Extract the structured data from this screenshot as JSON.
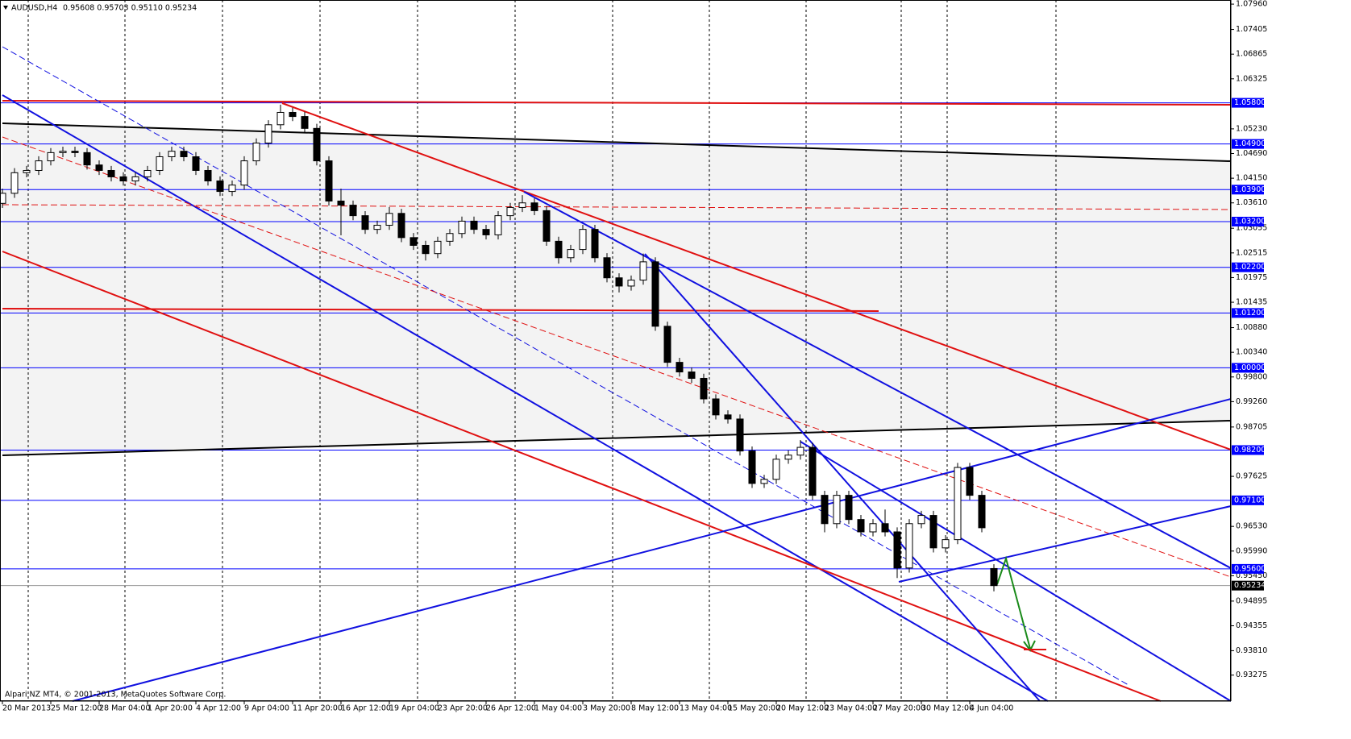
{
  "chart_data": {
    "type": "candlestick",
    "header": {
      "symbol": "AUDUSD,H4",
      "ohlc_text": "0.95608 0.95703 0.95110 0.95234"
    },
    "footer": "Alpari NZ MT4, © 2001-2013, MetaQuotes Software Corp.",
    "color_up": "#ffffff",
    "color_down": "#000000",
    "open": [
      1.036,
      1.0382,
      1.0427,
      1.0432,
      1.0453,
      1.0471,
      1.0474,
      1.0471,
      1.0444,
      1.0432,
      1.0418,
      1.0409,
      1.0418,
      1.0432,
      1.0462,
      1.0474,
      1.0462,
      1.0432,
      1.0409,
      1.0386,
      1.04,
      1.0453,
      1.0492,
      1.0532,
      1.0559,
      1.055,
      1.0524,
      1.0453,
      1.0365,
      1.0356,
      1.0333,
      1.0303,
      1.0312,
      1.0338,
      1.0285,
      1.0268,
      1.025,
      1.0277,
      1.0294,
      1.0321,
      1.0303,
      1.0291,
      1.0333,
      1.0351,
      1.0361,
      1.0344,
      1.0277,
      1.0241,
      1.0259,
      1.0303,
      1.0241,
      1.0197,
      1.0179,
      1.0192,
      1.0232,
      1.0091,
      1.0012,
      0.9991,
      0.9977,
      0.9932,
      0.9897,
      0.9888,
      0.9818,
      0.9747,
      0.9756,
      0.98,
      0.9809,
      0.9826,
      0.9721,
      0.9659,
      0.9721,
      0.9668,
      0.9641,
      0.9659,
      0.9641,
      0.9562,
      0.9659,
      0.9677,
      0.9606,
      0.9624,
      0.9782,
      0.9721,
      0.95608
    ],
    "high": [
      1.0392,
      1.0437,
      1.0442,
      1.0463,
      1.0481,
      1.0484,
      1.0484,
      1.0481,
      1.0454,
      1.0442,
      1.0428,
      1.0428,
      1.0442,
      1.0472,
      1.0484,
      1.0484,
      1.0472,
      1.0442,
      1.0419,
      1.041,
      1.0463,
      1.0502,
      1.0542,
      1.0576,
      1.0569,
      1.056,
      1.0534,
      1.0463,
      1.0392,
      1.0366,
      1.0343,
      1.0322,
      1.0352,
      1.0348,
      1.0295,
      1.0278,
      1.0287,
      1.0304,
      1.0331,
      1.0331,
      1.0313,
      1.0343,
      1.0361,
      1.0378,
      1.0371,
      1.0354,
      1.0287,
      1.0269,
      1.0313,
      1.0313,
      1.0251,
      1.0207,
      1.0202,
      1.025,
      1.0242,
      1.0101,
      1.0022,
      1.0001,
      0.9987,
      0.9942,
      0.9907,
      0.9898,
      0.9828,
      0.9766,
      0.981,
      0.9819,
      0.9842,
      0.9836,
      0.9731,
      0.9731,
      0.9731,
      0.9678,
      0.9669,
      0.969,
      0.9651,
      0.9669,
      0.9687,
      0.9687,
      0.9634,
      0.9792,
      0.9792,
      0.9731,
      0.95703
    ],
    "low": [
      1.035,
      1.0372,
      1.0417,
      1.0422,
      1.0443,
      1.0461,
      1.0461,
      1.0434,
      1.0422,
      1.0408,
      1.0399,
      1.0399,
      1.0408,
      1.0422,
      1.0452,
      1.0452,
      1.0422,
      1.0399,
      1.0376,
      1.0376,
      1.039,
      1.0443,
      1.0482,
      1.0522,
      1.054,
      1.0514,
      1.0443,
      1.0355,
      1.029,
      1.0323,
      1.0293,
      1.0293,
      1.0302,
      1.0275,
      1.0258,
      1.0235,
      1.024,
      1.0267,
      1.0284,
      1.0293,
      1.0281,
      1.0281,
      1.0323,
      1.0341,
      1.0334,
      1.0267,
      1.0228,
      1.0231,
      1.0249,
      1.0231,
      1.0187,
      1.0165,
      1.0169,
      1.0182,
      1.0081,
      1.0002,
      0.9981,
      0.9967,
      0.9922,
      0.9887,
      0.9878,
      0.9808,
      0.9737,
      0.9737,
      0.9746,
      0.979,
      0.9799,
      0.9711,
      0.964,
      0.9649,
      0.9658,
      0.9631,
      0.9631,
      0.9631,
      0.954,
      0.9552,
      0.9649,
      0.9596,
      0.9596,
      0.9614,
      0.9711,
      0.964,
      0.9511
    ],
    "close": [
      1.0382,
      1.0427,
      1.0432,
      1.0453,
      1.0471,
      1.0474,
      1.0471,
      1.0444,
      1.0432,
      1.0418,
      1.0409,
      1.0418,
      1.0432,
      1.0462,
      1.0474,
      1.0462,
      1.0432,
      1.0409,
      1.0386,
      1.04,
      1.0453,
      1.0492,
      1.0532,
      1.0559,
      1.055,
      1.0524,
      1.0453,
      1.0365,
      1.0356,
      1.0333,
      1.0303,
      1.0312,
      1.0338,
      1.0285,
      1.0268,
      1.025,
      1.0277,
      1.0294,
      1.0321,
      1.0303,
      1.0291,
      1.0333,
      1.0351,
      1.0361,
      1.0344,
      1.0277,
      1.0241,
      1.0259,
      1.0303,
      1.0241,
      1.0197,
      1.0179,
      1.0192,
      1.0232,
      1.0091,
      1.0012,
      0.9991,
      0.9977,
      0.9932,
      0.9897,
      0.9888,
      0.9818,
      0.9747,
      0.9756,
      0.98,
      0.9809,
      0.9826,
      0.9721,
      0.9659,
      0.9721,
      0.9668,
      0.9641,
      0.9659,
      0.9641,
      0.9562,
      0.9659,
      0.9677,
      0.9606,
      0.9624,
      0.9782,
      0.9721,
      0.965,
      0.95234
    ],
    "xlim": [
      -0.2,
      101.6
    ],
    "xticks": [
      {
        "value": 0,
        "label": "20 Mar 2013"
      },
      {
        "value": 4,
        "label": "25 Mar 12:00"
      },
      {
        "value": 8,
        "label": "28 Mar 04:00"
      },
      {
        "value": 12,
        "label": "1 Apr 20:00"
      },
      {
        "value": 16,
        "label": "4 Apr 12:00"
      },
      {
        "value": 20,
        "label": "9 Apr 04:00"
      },
      {
        "value": 24,
        "label": "11 Apr 20:00"
      },
      {
        "value": 28,
        "label": "16 Apr 12:00"
      },
      {
        "value": 32,
        "label": "19 Apr 04:00"
      },
      {
        "value": 36,
        "label": "23 Apr 20:00"
      },
      {
        "value": 40,
        "label": "26 Apr 12:00"
      },
      {
        "value": 44,
        "label": "1 May 04:00"
      },
      {
        "value": 48,
        "label": "3 May 20:00"
      },
      {
        "value": 52,
        "label": "8 May 12:00"
      },
      {
        "value": 56,
        "label": "13 May 04:00"
      },
      {
        "value": 60,
        "label": "15 May 20:00"
      },
      {
        "value": 64,
        "label": "20 May 12:00"
      },
      {
        "value": 68,
        "label": "23 May 04:00"
      },
      {
        "value": 72,
        "label": "27 May 20:00"
      },
      {
        "value": 76,
        "label": "30 May 12:00"
      },
      {
        "value": 80,
        "label": "4 Jun 04:00"
      }
    ],
    "ylim": [
      0.92706,
      1.0805
    ],
    "yticks": [
      {
        "value": 1.0796,
        "label": "1.07960"
      },
      {
        "value": 1.07405,
        "label": "1.07405"
      },
      {
        "value": 1.06865,
        "label": "1.06865"
      },
      {
        "value": 1.06325,
        "label": "1.06325"
      },
      {
        "value": 1.0523,
        "label": "1.05230"
      },
      {
        "value": 1.0469,
        "label": "1.04690"
      },
      {
        "value": 1.0415,
        "label": "1.04150"
      },
      {
        "value": 1.0361,
        "label": "1.03610"
      },
      {
        "value": 1.03055,
        "label": "1.03055"
      },
      {
        "value": 1.02515,
        "label": "1.02515"
      },
      {
        "value": 1.01975,
        "label": "1.01975"
      },
      {
        "value": 1.01435,
        "label": "1.01435"
      },
      {
        "value": 1.0088,
        "label": "1.00880"
      },
      {
        "value": 1.0034,
        "label": "1.00340"
      },
      {
        "value": 0.998,
        "label": "0.99800"
      },
      {
        "value": 0.9926,
        "label": "0.99260"
      },
      {
        "value": 0.98705,
        "label": "0.98705"
      },
      {
        "value": 0.97625,
        "label": "0.97625"
      },
      {
        "value": 0.9653,
        "label": "0.96530"
      },
      {
        "value": 0.9599,
        "label": "0.95990"
      },
      {
        "value": 0.9545,
        "label": "0.95450"
      },
      {
        "value": 0.94895,
        "label": "0.94895"
      },
      {
        "value": 0.94355,
        "label": "0.94355"
      },
      {
        "value": 0.9381,
        "label": "0.93810"
      },
      {
        "value": 0.93275,
        "label": "0.93275"
      }
    ],
    "levels": [
      {
        "value": 1.058,
        "label": "1.05800"
      },
      {
        "value": 1.049,
        "label": "1.04900"
      },
      {
        "value": 1.039,
        "label": "1.03900"
      },
      {
        "value": 1.032,
        "label": "1.03200"
      },
      {
        "value": 1.022,
        "label": "1.02200"
      },
      {
        "value": 1.012,
        "label": "1.01200"
      },
      {
        "value": 1.0,
        "label": "1.00000"
      },
      {
        "value": 0.982,
        "label": "0.98200"
      },
      {
        "value": 0.971,
        "label": "0.97100"
      },
      {
        "value": 0.956,
        "label": "0.95600"
      }
    ],
    "level_color": "#0000ff",
    "last_price": {
      "value": 0.95234,
      "label": "0.95234"
    }
  }
}
